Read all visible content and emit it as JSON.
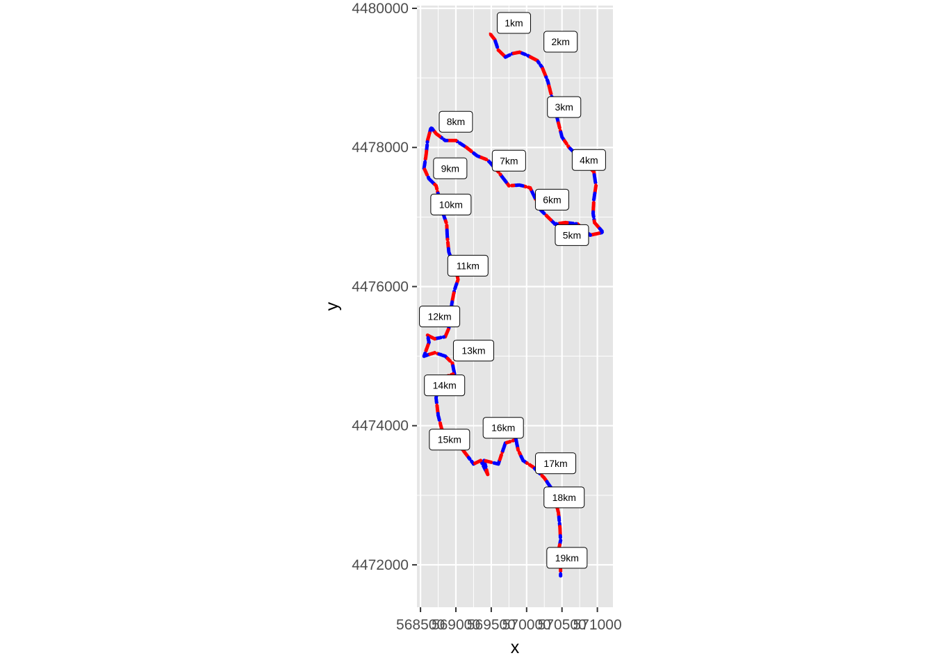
{
  "chart_data": {
    "type": "scatter",
    "title": "",
    "xlabel": "x",
    "ylabel": "y",
    "xlim": [
      568450,
      571220
    ],
    "ylim": [
      4471390,
      4480040
    ],
    "x_ticks": [
      568500,
      569000,
      569500,
      570000,
      570500,
      571000
    ],
    "x_tick_labels": [
      "568500",
      "569000",
      "569500",
      "570000",
      "570500",
      "571000"
    ],
    "y_ticks": [
      4472000,
      4474000,
      4476000,
      4478000,
      4480000
    ],
    "y_tick_labels": [
      "4472000",
      "4474000",
      "4476000",
      "4478000",
      "4480000"
    ],
    "grid": true,
    "panel_background": "#e5e5e5",
    "grid_color": "#ffffff",
    "route_color": "#bdbdbd",
    "point_colors": [
      "#ff0000",
      "#0000ff"
    ],
    "route": [
      [
        569480,
        4479640
      ],
      [
        569550,
        4479550
      ],
      [
        569600,
        4479400
      ],
      [
        569700,
        4479300
      ],
      [
        569800,
        4479350
      ],
      [
        569900,
        4479370
      ],
      [
        570000,
        4479330
      ],
      [
        570150,
        4479250
      ],
      [
        570220,
        4479150
      ],
      [
        570300,
        4478950
      ],
      [
        570350,
        4478750
      ],
      [
        570400,
        4478550
      ],
      [
        570450,
        4478350
      ],
      [
        570500,
        4478150
      ],
      [
        570600,
        4478000
      ],
      [
        570750,
        4477850
      ],
      [
        570950,
        4477650
      ],
      [
        570980,
        4477450
      ],
      [
        570950,
        4477250
      ],
      [
        570940,
        4477050
      ],
      [
        570960,
        4476920
      ],
      [
        571080,
        4476780
      ],
      [
        570900,
        4476740
      ],
      [
        570720,
        4476900
      ],
      [
        570550,
        4476920
      ],
      [
        570400,
        4476900
      ],
      [
        570200,
        4477100
      ],
      [
        570050,
        4477420
      ],
      [
        569900,
        4477460
      ],
      [
        569750,
        4477450
      ],
      [
        569600,
        4477650
      ],
      [
        569450,
        4477820
      ],
      [
        569300,
        4477880
      ],
      [
        569150,
        4478000
      ],
      [
        569000,
        4478100
      ],
      [
        568850,
        4478100
      ],
      [
        568720,
        4478200
      ],
      [
        568650,
        4478290
      ],
      [
        568600,
        4478100
      ],
      [
        568580,
        4477900
      ],
      [
        568550,
        4477700
      ],
      [
        568620,
        4477550
      ],
      [
        568720,
        4477450
      ],
      [
        568770,
        4477250
      ],
      [
        568820,
        4477050
      ],
      [
        568870,
        4476900
      ],
      [
        568880,
        4476700
      ],
      [
        568900,
        4476500
      ],
      [
        568950,
        4476350
      ],
      [
        569000,
        4476250
      ],
      [
        569030,
        4476100
      ],
      [
        568980,
        4475950
      ],
      [
        568950,
        4475800
      ],
      [
        568920,
        4475600
      ],
      [
        568900,
        4475400
      ],
      [
        568850,
        4475280
      ],
      [
        568700,
        4475250
      ],
      [
        568600,
        4475300
      ],
      [
        568620,
        4475200
      ],
      [
        568550,
        4475000
      ],
      [
        568700,
        4475050
      ],
      [
        568850,
        4475000
      ],
      [
        568950,
        4474900
      ],
      [
        568980,
        4474750
      ],
      [
        568850,
        4474700
      ],
      [
        568750,
        4474550
      ],
      [
        568720,
        4474400
      ],
      [
        568750,
        4474150
      ],
      [
        568800,
        4473950
      ],
      [
        568950,
        4473800
      ],
      [
        569100,
        4473650
      ],
      [
        569250,
        4473450
      ],
      [
        569350,
        4473500
      ],
      [
        569450,
        4473300
      ],
      [
        569400,
        4473500
      ],
      [
        569600,
        4473450
      ],
      [
        569700,
        4473750
      ],
      [
        569850,
        4473800
      ],
      [
        569880,
        4473650
      ],
      [
        569950,
        4473500
      ],
      [
        570100,
        4473400
      ],
      [
        570250,
        4473250
      ],
      [
        570350,
        4473100
      ],
      [
        570400,
        4472950
      ],
      [
        570450,
        4472750
      ],
      [
        570470,
        4472550
      ],
      [
        570480,
        4472350
      ],
      [
        570450,
        4472200
      ],
      [
        570480,
        4472000
      ],
      [
        570480,
        4471820
      ]
    ],
    "km_markers": [
      {
        "label": "1km",
        "x": 569820,
        "y": 4479790
      },
      {
        "label": "2km",
        "x": 570480,
        "y": 4479520
      },
      {
        "label": "3km",
        "x": 570530,
        "y": 4478580
      },
      {
        "label": "4km",
        "x": 570880,
        "y": 4477820
      },
      {
        "label": "5km",
        "x": 570640,
        "y": 4476740
      },
      {
        "label": "6km",
        "x": 570360,
        "y": 4477250
      },
      {
        "label": "7km",
        "x": 569750,
        "y": 4477810
      },
      {
        "label": "8km",
        "x": 569000,
        "y": 4478370
      },
      {
        "label": "9km",
        "x": 568920,
        "y": 4477700
      },
      {
        "label": "10km",
        "x": 568930,
        "y": 4477180
      },
      {
        "label": "11km",
        "x": 569170,
        "y": 4476300
      },
      {
        "label": "12km",
        "x": 568770,
        "y": 4475570
      },
      {
        "label": "13km",
        "x": 569250,
        "y": 4475080
      },
      {
        "label": "14km",
        "x": 568840,
        "y": 4474580
      },
      {
        "label": "15km",
        "x": 568910,
        "y": 4473800
      },
      {
        "label": "16km",
        "x": 569670,
        "y": 4473970
      },
      {
        "label": "17km",
        "x": 570410,
        "y": 4473460
      },
      {
        "label": "18km",
        "x": 570530,
        "y": 4472970
      },
      {
        "label": "19km",
        "x": 570570,
        "y": 4472100
      }
    ]
  }
}
